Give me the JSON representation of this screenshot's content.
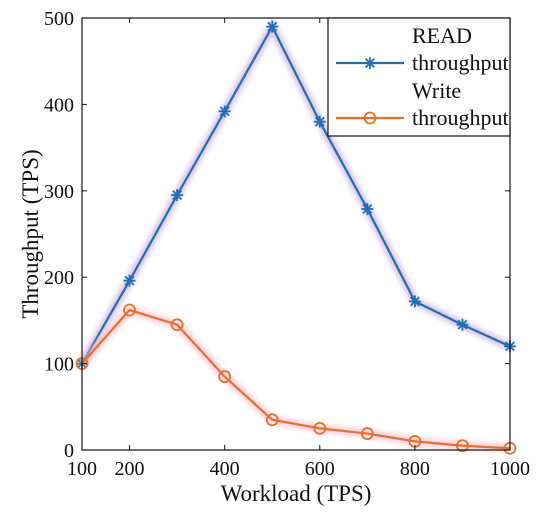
{
  "chart_data": {
    "type": "line",
    "title": "",
    "xlabel": "Workload (TPS)",
    "ylabel": "Throughput (TPS)",
    "xlim": [
      100,
      1000
    ],
    "ylim": [
      0,
      500
    ],
    "xticks": [
      100,
      200,
      400,
      600,
      800,
      1000
    ],
    "xtick_labels": [
      "100",
      "200",
      "400",
      "600",
      "800",
      "1000"
    ],
    "yticks": [
      0,
      100,
      200,
      300,
      400,
      500
    ],
    "ytick_labels": [
      "0",
      "100",
      "200",
      "300",
      "400",
      "500"
    ],
    "grid": false,
    "legend_position": "top-right",
    "x": [
      100,
      200,
      300,
      400,
      500,
      600,
      700,
      800,
      900,
      1000
    ],
    "series": [
      {
        "name": "READ throughput",
        "legend_lines": [
          "READ",
          "throughput"
        ],
        "marker": "asterisk",
        "color": "#1f6fb4",
        "values": [
          100,
          196,
          295,
          392,
          490,
          380,
          279,
          172,
          145,
          120
        ]
      },
      {
        "name": "Write throughput",
        "legend_lines": [
          "Write",
          "throughput"
        ],
        "marker": "circle",
        "color": "#e8702a",
        "values": [
          100,
          162,
          145,
          85,
          35,
          25,
          19,
          10,
          5,
          2
        ]
      }
    ]
  }
}
